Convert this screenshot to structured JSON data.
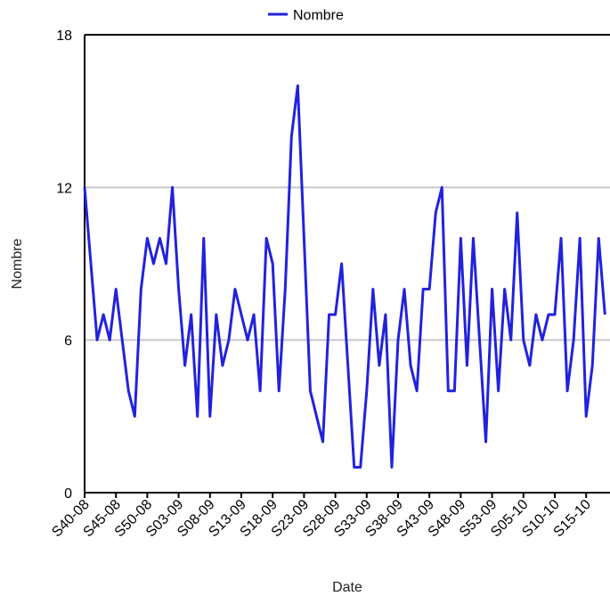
{
  "chart_data": {
    "type": "line",
    "xlabel": "Date",
    "ylabel": "Nombre",
    "ylim": [
      0,
      18
    ],
    "yticks": [
      0,
      6,
      12,
      18
    ],
    "grid": "horizontal",
    "legend": "top-center",
    "colors": {
      "series": "#2222dd",
      "grid": "#c8c8c8",
      "axis": "#000000"
    },
    "x": [
      "S40-08",
      "S41-08",
      "S42-08",
      "S43-08",
      "S44-08",
      "S45-08",
      "S46-08",
      "S47-08",
      "S48-08",
      "S49-08",
      "S50-08",
      "S51-08",
      "S52-08",
      "S01-09",
      "S02-09",
      "S03-09",
      "S04-09",
      "S05-09",
      "S06-09",
      "S07-09",
      "S08-09",
      "S09-09",
      "S10-09",
      "S11-09",
      "S12-09",
      "S13-09",
      "S14-09",
      "S15-09",
      "S16-09",
      "S17-09",
      "S18-09",
      "S19-09",
      "S20-09",
      "S21-09",
      "S22-09",
      "S23-09",
      "S24-09",
      "S25-09",
      "S26-09",
      "S27-09",
      "S28-09",
      "S29-09",
      "S30-09",
      "S31-09",
      "S32-09",
      "S33-09",
      "S34-09",
      "S35-09",
      "S36-09",
      "S37-09",
      "S38-09",
      "S39-09",
      "S40-09",
      "S41-09",
      "S42-09",
      "S43-09",
      "S44-09",
      "S45-09",
      "S46-09",
      "S47-09",
      "S48-09",
      "S49-09",
      "S50-09",
      "S51-09",
      "S52-09",
      "S53-09",
      "S01-10",
      "S02-10",
      "S03-10",
      "S04-10",
      "S05-10",
      "S06-10",
      "S07-10",
      "S08-10",
      "S09-10",
      "S10-10",
      "S11-10",
      "S12-10",
      "S13-10",
      "S14-10",
      "S15-10",
      "S16-10",
      "S17-10",
      "S18-10"
    ],
    "xtick_labels": [
      "S40-08",
      "S45-08",
      "S50-08",
      "S03-09",
      "S08-09",
      "S13-09",
      "S18-09",
      "S23-09",
      "S28-09",
      "S33-09",
      "S38-09",
      "S43-09",
      "S48-09",
      "S53-09",
      "S05-10",
      "S10-10",
      "S15-10"
    ],
    "series": [
      {
        "name": "Nombre",
        "values": [
          12,
          9,
          6,
          7,
          6,
          8,
          6,
          4,
          3,
          8,
          10,
          9,
          10,
          9,
          12,
          8,
          5,
          7,
          3,
          10,
          3,
          7,
          5,
          6,
          8,
          7,
          6,
          7,
          4,
          10,
          9,
          4,
          8,
          14,
          16,
          10,
          4,
          3,
          2,
          7,
          7,
          9,
          5,
          1,
          1,
          4,
          8,
          5,
          7,
          1,
          6,
          8,
          5,
          4,
          8,
          8,
          11,
          12,
          4,
          4,
          10,
          5,
          10,
          6,
          2,
          8,
          4,
          8,
          6,
          11,
          6,
          5,
          7,
          6,
          7,
          7,
          10,
          4,
          6,
          10,
          3,
          5,
          10,
          7
        ]
      }
    ]
  }
}
